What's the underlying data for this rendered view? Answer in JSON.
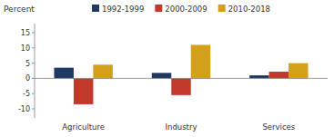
{
  "chart_data": {
    "type": "bar",
    "ylabel": "Percent",
    "categories": [
      "Agriculture",
      "Industry",
      "Services"
    ],
    "series": [
      {
        "name": "1992-1999",
        "color": "#1f3864",
        "values": [
          3.5,
          1.8,
          1.0
        ]
      },
      {
        "name": "2000-2009",
        "color": "#c0392b",
        "values": [
          -8.5,
          -5.5,
          2.2
        ]
      },
      {
        "name": "2010-2018",
        "color": "#d4a017",
        "values": [
          4.5,
          11.0,
          5.0
        ]
      }
    ],
    "ylim": [
      -13,
      18
    ],
    "yticks": [
      -10,
      -5,
      0,
      5,
      10,
      15
    ],
    "grid": false,
    "legend": "top"
  }
}
